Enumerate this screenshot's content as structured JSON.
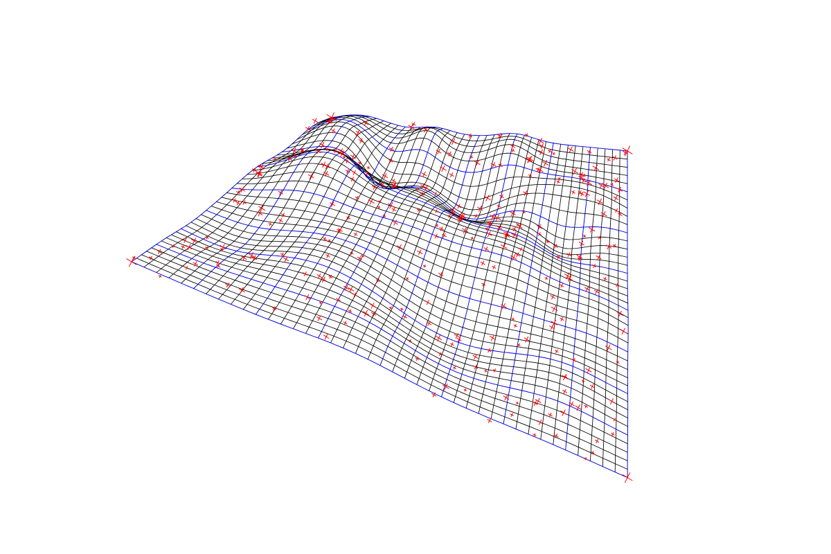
{
  "figure": {
    "description_kind": "interpolated surface wireframe with scattered control points",
    "colors": {
      "background": "#ffffff",
      "grid_line": "#000000",
      "grid_major_line": "#0000dd",
      "control_point": "#ff0000"
    },
    "surface_grid": {
      "u_divisions": 40,
      "v_divisions": 40,
      "major_every": 5
    },
    "control_points": {
      "marker": "cross",
      "count_estimate": 320
    }
  }
}
